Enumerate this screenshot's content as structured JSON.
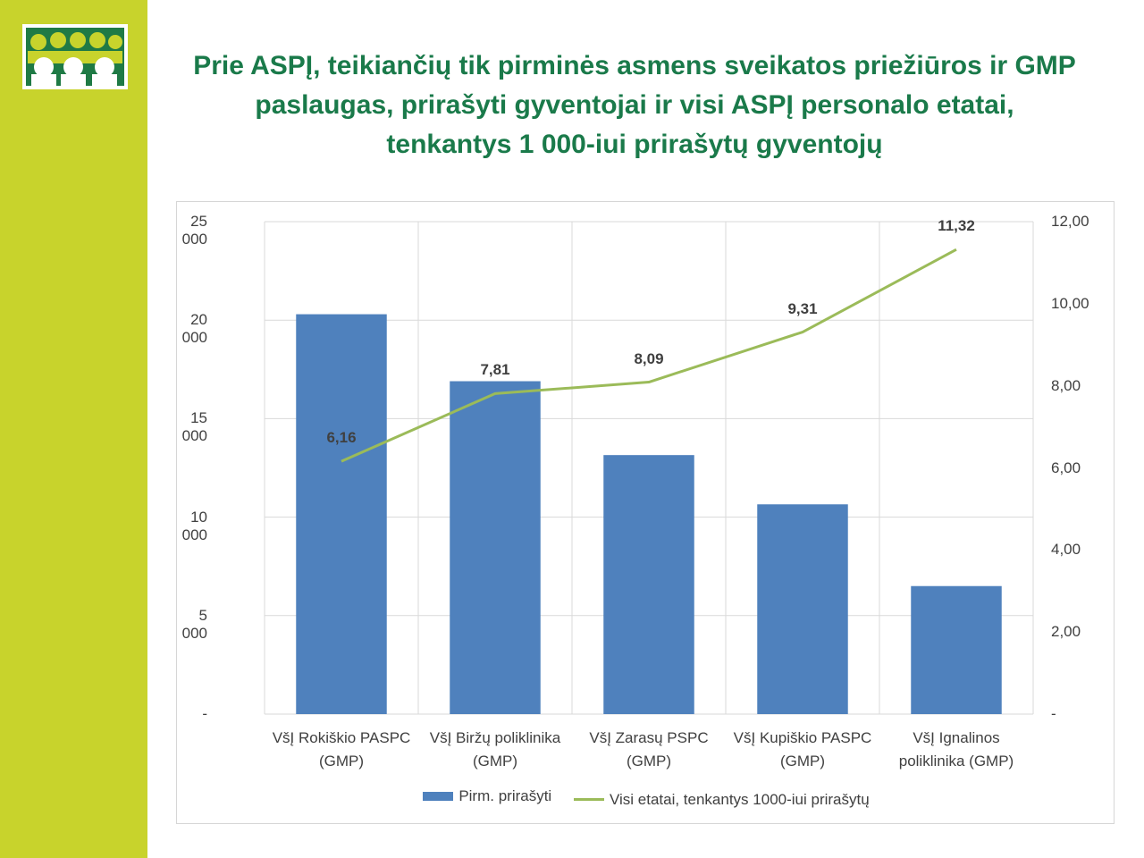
{
  "title_lines": [
    "Prie ASPĮ, teikiančių tik pirminės asmens sveikatos priežiūros ir GMP",
    "paslaugas, prirašyti gyventojai ir visi ASPĮ personalo etatai,",
    "tenkantys 1 000-iui prirašytų gyventojų"
  ],
  "chart_data": {
    "type": "bar",
    "categories": [
      [
        "VšĮ Rokiškio PASPC",
        "(GMP)"
      ],
      [
        "VšĮ Biržų poliklinika",
        "(GMP)"
      ],
      [
        "VšĮ Zarasų PSPC",
        "(GMP)"
      ],
      [
        "VšĮ Kupiškio PASPC",
        "(GMP)"
      ],
      [
        "VšĮ Ignalinos",
        "poliklinika (GMP)"
      ]
    ],
    "series": [
      {
        "name": "Pirm. prirašyti",
        "type": "bar",
        "axis": "left",
        "values": [
          20300,
          16900,
          13150,
          10650,
          6500
        ],
        "color": "#4f81bd"
      },
      {
        "name": "Visi etatai, tenkantys 1000-iui prirašytų",
        "type": "line",
        "axis": "right",
        "values": [
          6.16,
          7.81,
          8.09,
          9.31,
          11.32
        ],
        "labels": [
          "6,16",
          "7,81",
          "8,09",
          "9,31",
          "11,32"
        ],
        "color": "#9bbb59"
      }
    ],
    "left_axis": {
      "ylim": [
        0,
        25000
      ],
      "ticks": [
        0,
        5000,
        10000,
        15000,
        20000,
        25000
      ],
      "tick_labels": [
        "-",
        "5 000",
        "10 000",
        "15 000",
        "20 000",
        "25 000"
      ]
    },
    "right_axis": {
      "ylim": [
        0,
        12
      ],
      "ticks": [
        0,
        2,
        4,
        6,
        8,
        10,
        12
      ],
      "tick_labels": [
        "-",
        "2,00",
        "4,00",
        "6,00",
        "8,00",
        "10,00",
        "12,00"
      ]
    },
    "grid": true,
    "legend": "bottom"
  },
  "colors": {
    "sidebar": "#c8d32c",
    "title": "#1a7a4a",
    "bar": "#4f81bd",
    "line": "#9bbb59"
  }
}
